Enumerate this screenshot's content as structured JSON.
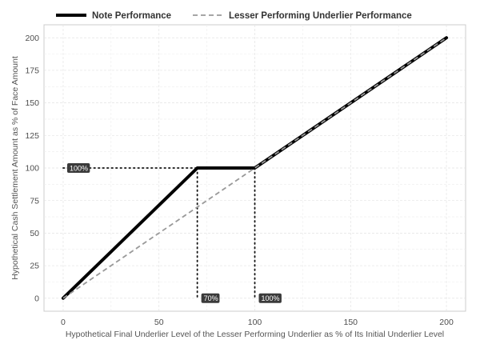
{
  "chart_data": {
    "type": "line",
    "title": "",
    "xlabel": "Hypothetical Final Underlier Level of the Lesser Performing Underlier as % of Its Initial Underlier Level",
    "ylabel": "Hypothetical Cash Settlement Amount as % of Face Amount",
    "xlim": [
      -10,
      210
    ],
    "ylim": [
      -10,
      210
    ],
    "x_ticks": [
      0,
      50,
      100,
      150,
      200
    ],
    "y_ticks": [
      0,
      25,
      50,
      75,
      100,
      125,
      150,
      175,
      200
    ],
    "grid": true,
    "legend_position": "top",
    "series": [
      {
        "name": "Note Performance",
        "style": "solid",
        "color": "#000000",
        "x": [
          0,
          70,
          100,
          200
        ],
        "y": [
          0,
          100,
          100,
          200
        ]
      },
      {
        "name": "Lesser Performing Underlier Performance",
        "style": "dashed",
        "color": "#999999",
        "x": [
          0,
          200
        ],
        "y": [
          0,
          200
        ]
      }
    ],
    "guides": [
      {
        "x": [
          0,
          70
        ],
        "y": [
          100,
          100
        ]
      },
      {
        "x": [
          70,
          70
        ],
        "y": [
          100,
          0
        ]
      },
      {
        "x": [
          100,
          100
        ],
        "y": [
          100,
          0
        ]
      }
    ],
    "annotations": [
      {
        "text": "100%",
        "x": 0,
        "y": 100
      },
      {
        "text": "70%",
        "x": 70,
        "y": 0
      },
      {
        "text": "100%",
        "x": 100,
        "y": 0
      }
    ]
  }
}
